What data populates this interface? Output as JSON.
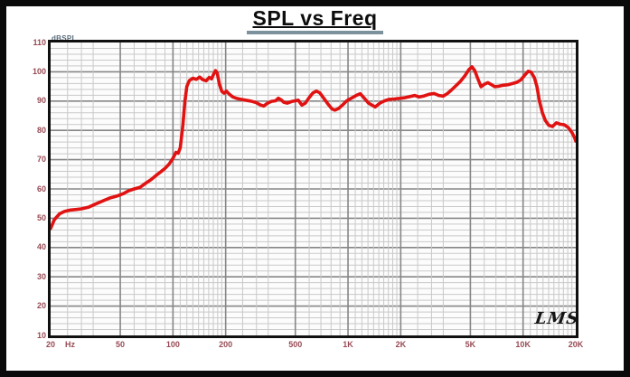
{
  "title": "SPL vs Freq",
  "y_axis": {
    "unit_label": "dBSPL",
    "ticks": [
      110,
      100,
      90,
      80,
      70,
      60,
      50,
      40,
      30,
      20,
      10
    ]
  },
  "x_axis": {
    "unit_label": "Hz",
    "ticks": [
      {
        "f": 20,
        "label": "20"
      },
      {
        "f": 50,
        "label": "50"
      },
      {
        "f": 100,
        "label": "100"
      },
      {
        "f": 200,
        "label": "200"
      },
      {
        "f": 500,
        "label": "500"
      },
      {
        "f": 1000,
        "label": "1K"
      },
      {
        "f": 2000,
        "label": "2K"
      },
      {
        "f": 5000,
        "label": "5K"
      },
      {
        "f": 10000,
        "label": "10K"
      },
      {
        "f": 20000,
        "label": "20K"
      }
    ]
  },
  "logo_text": "LMS",
  "colors": {
    "curve": "#e11212",
    "grid_minor": "#c9c9c9",
    "grid_major": "#868686",
    "plot_border": "#101010",
    "x_label": "#974a54",
    "y_label": "#974a54",
    "unit_label": "#5a6d7d",
    "title_underline": "#7e929e"
  },
  "chart_data": {
    "type": "line",
    "title": "SPL vs Freq",
    "xlabel": "Hz",
    "ylabel": "dBSPL",
    "x_scale": "log",
    "xlim": [
      20,
      20000
    ],
    "ylim": [
      10,
      110
    ],
    "y_minor_step": 2,
    "y_major_step": 10,
    "grid": true,
    "series_name": "SPL",
    "points": [
      [
        20,
        46.5
      ],
      [
        21,
        49.5
      ],
      [
        22.5,
        51.5
      ],
      [
        24,
        52.3
      ],
      [
        26,
        52.8
      ],
      [
        28,
        53
      ],
      [
        30,
        53.2
      ],
      [
        33,
        53.8
      ],
      [
        36,
        54.8
      ],
      [
        40,
        56
      ],
      [
        44,
        57
      ],
      [
        48,
        57.6
      ],
      [
        52,
        58.4
      ],
      [
        56,
        59.4
      ],
      [
        60,
        60
      ],
      [
        65,
        60.6
      ],
      [
        70,
        62
      ],
      [
        75,
        63.2
      ],
      [
        80,
        64.6
      ],
      [
        85,
        65.8
      ],
      [
        90,
        67
      ],
      [
        95,
        68.5
      ],
      [
        100,
        70.5
      ],
      [
        104,
        72.5
      ],
      [
        107,
        72.2
      ],
      [
        110,
        74
      ],
      [
        114,
        82
      ],
      [
        117,
        90
      ],
      [
        120,
        95
      ],
      [
        124,
        97
      ],
      [
        130,
        97.8
      ],
      [
        136,
        97.4
      ],
      [
        142,
        98.2
      ],
      [
        148,
        97.3
      ],
      [
        155,
        96.9
      ],
      [
        161,
        98.1
      ],
      [
        166,
        97.6
      ],
      [
        171,
        99.3
      ],
      [
        175,
        100.4
      ],
      [
        179,
        99.6
      ],
      [
        184,
        95.8
      ],
      [
        190,
        93.3
      ],
      [
        196,
        92.7
      ],
      [
        202,
        93.4
      ],
      [
        210,
        92.3
      ],
      [
        220,
        91.4
      ],
      [
        232,
        90.9
      ],
      [
        245,
        90.6
      ],
      [
        260,
        90.3
      ],
      [
        278,
        90
      ],
      [
        298,
        89.5
      ],
      [
        315,
        88.7
      ],
      [
        330,
        88.3
      ],
      [
        345,
        89.2
      ],
      [
        365,
        89.9
      ],
      [
        385,
        90.1
      ],
      [
        400,
        91
      ],
      [
        415,
        90.4
      ],
      [
        430,
        89.6
      ],
      [
        450,
        89.3
      ],
      [
        465,
        89.6
      ],
      [
        480,
        89.9
      ],
      [
        500,
        90.1
      ],
      [
        520,
        90.3
      ],
      [
        545,
        88.6
      ],
      [
        570,
        89.3
      ],
      [
        600,
        91.2
      ],
      [
        630,
        92.8
      ],
      [
        660,
        93.4
      ],
      [
        690,
        92.8
      ],
      [
        730,
        90.8
      ],
      [
        770,
        88.9
      ],
      [
        810,
        87.3
      ],
      [
        840,
        86.9
      ],
      [
        880,
        87.4
      ],
      [
        930,
        88.6
      ],
      [
        980,
        90
      ],
      [
        1010,
        90.5
      ],
      [
        1060,
        91.2
      ],
      [
        1120,
        92
      ],
      [
        1175,
        92.5
      ],
      [
        1240,
        91
      ],
      [
        1310,
        89.3
      ],
      [
        1430,
        88
      ],
      [
        1530,
        89.4
      ],
      [
        1620,
        90.1
      ],
      [
        1720,
        90.6
      ],
      [
        1830,
        90.7
      ],
      [
        1950,
        90.9
      ],
      [
        2090,
        91.1
      ],
      [
        2250,
        91.5
      ],
      [
        2400,
        91.9
      ],
      [
        2550,
        91.4
      ],
      [
        2700,
        91.7
      ],
      [
        2900,
        92.3
      ],
      [
        3100,
        92.6
      ],
      [
        3300,
        91.9
      ],
      [
        3500,
        91.7
      ],
      [
        3700,
        92.6
      ],
      [
        3900,
        93.8
      ],
      [
        4150,
        95.3
      ],
      [
        4400,
        96.8
      ],
      [
        4650,
        98.6
      ],
      [
        4900,
        100.7
      ],
      [
        5100,
        101.7
      ],
      [
        5300,
        100.4
      ],
      [
        5500,
        97.8
      ],
      [
        5750,
        94.9
      ],
      [
        6000,
        95.7
      ],
      [
        6300,
        96.3
      ],
      [
        6600,
        95.6
      ],
      [
        6900,
        94.9
      ],
      [
        7300,
        95.1
      ],
      [
        7700,
        95.4
      ],
      [
        8200,
        95.6
      ],
      [
        8700,
        96
      ],
      [
        9200,
        96.4
      ],
      [
        9700,
        97.2
      ],
      [
        10200,
        98.8
      ],
      [
        10700,
        100.2
      ],
      [
        11100,
        99.9
      ],
      [
        11600,
        98
      ],
      [
        12000,
        95
      ],
      [
        12400,
        90
      ],
      [
        12900,
        86
      ],
      [
        13400,
        83.4
      ],
      [
        14000,
        81.8
      ],
      [
        14700,
        81.3
      ],
      [
        15500,
        82.6
      ],
      [
        16300,
        82.1
      ],
      [
        17200,
        81.9
      ],
      [
        18100,
        81
      ],
      [
        19000,
        79.3
      ],
      [
        19700,
        77.5
      ],
      [
        20000,
        76.3
      ]
    ],
    "x_minor_multiples": [
      1.25,
      1.5,
      1.75,
      2.5,
      3,
      3.5,
      4,
      4.5,
      5.5,
      6,
      6.5,
      7,
      7.5,
      8,
      8.5,
      9,
      9.5
    ],
    "x_major_lines": [
      50,
      100,
      200,
      500,
      1000,
      2000,
      5000,
      10000
    ]
  }
}
